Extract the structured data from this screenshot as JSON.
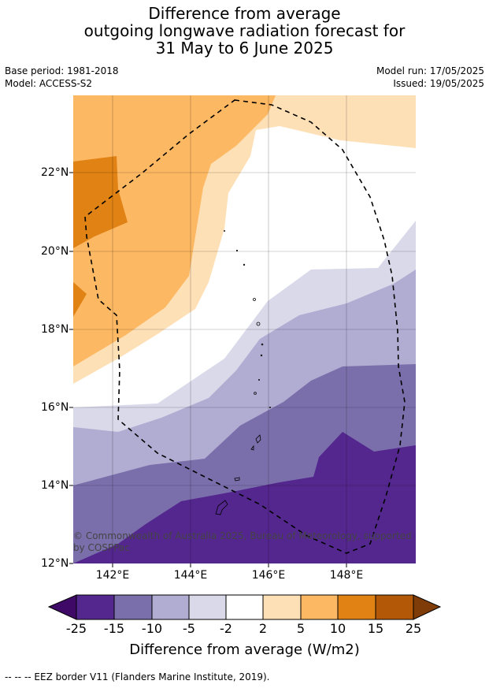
{
  "title": {
    "line1": "Difference from average",
    "line2": "outgoing longwave radiation forecast for",
    "line3": "31 May to 6 June 2025"
  },
  "meta": {
    "base_period": "Base period: 1981-2018",
    "model": "Model: ACCESS-S2",
    "model_run": "Model run: 17/05/2025",
    "issued": "Issued: 19/05/2025"
  },
  "map": {
    "lat_labels": [
      "22°N",
      "20°N",
      "18°N",
      "16°N",
      "14°N",
      "12°N"
    ],
    "lon_labels": [
      "142°E",
      "144°E",
      "146°E",
      "148°E"
    ],
    "copyright": "© Commonwealth of Australia 2025, Bureau of Meteorology, supported by COSPPac"
  },
  "colorbar": {
    "ticks": [
      "-25",
      "-15",
      "-10",
      "-5",
      "-2",
      "2",
      "5",
      "10",
      "15",
      "25"
    ],
    "colors": [
      "#3f0a67",
      "#54278f",
      "#7b6fab",
      "#b0acd2",
      "#d9d9ea",
      "#ffffff",
      "#fee0b6",
      "#fdb863",
      "#e08214",
      "#b35806",
      "#7f3b08"
    ],
    "title": "Difference from average (W/m2)"
  },
  "footer": "--  --  -- EEZ border V11 (Flanders Marine Institute, 2019)."
}
